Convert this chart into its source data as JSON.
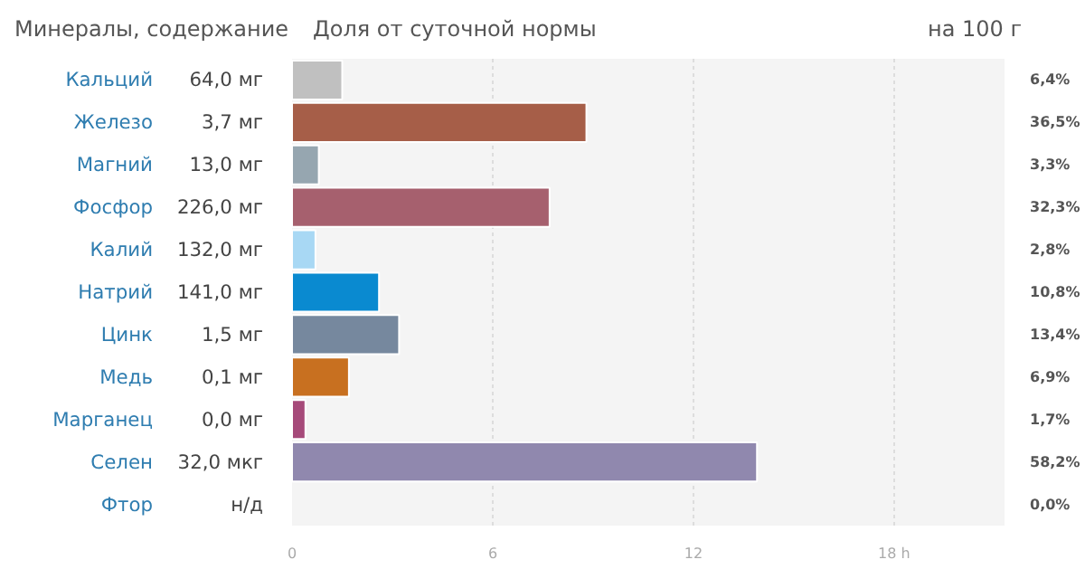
{
  "chart_data": {
    "type": "bar",
    "orientation": "horizontal",
    "title": "Доля от суточной нормы",
    "categories": [
      "Кальций",
      "Железо",
      "Магний",
      "Фосфор",
      "Калий",
      "Натрий",
      "Цинк",
      "Медь",
      "Марганец",
      "Селен",
      "Фтор"
    ],
    "values": [
      1.5,
      8.8,
      0.8,
      7.7,
      0.7,
      2.6,
      3.2,
      1.7,
      0.4,
      13.9,
      null
    ],
    "colors": [
      "#c0c0c0",
      "#a65e48",
      "#96a6b0",
      "#a6606e",
      "#a8d8f4",
      "#0a8ad0",
      "#76889e",
      "#c87020",
      "#a64a7a",
      "#9088ae",
      null
    ],
    "annotations": [
      "Минералы, содержание",
      "на 100 г",
      "64,0 мг",
      "3,7 мг",
      "13,0 мг",
      "226,0 мг",
      "132,0 мг",
      "141,0 мг",
      "1,5 мг",
      "0,1 мг",
      "0,0 мг",
      "32,0 мкг",
      "н/д",
      "6,4%",
      "36,5%",
      "3,3%",
      "32,3%",
      "2,8%",
      "10,8%",
      "13,4%",
      "6,9%",
      "1,7%",
      "58,2%",
      "0,0%"
    ],
    "xlim": [
      0,
      21.3
    ],
    "xticks": [
      0,
      6,
      12,
      {
        "value": 18,
        "label": "18 h"
      }
    ],
    "grid": "x"
  }
}
